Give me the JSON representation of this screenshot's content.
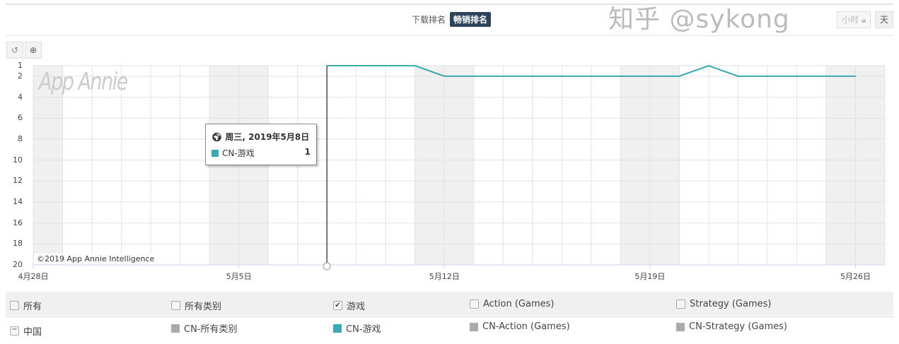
{
  "header": {
    "tabs": [
      {
        "label": "下载排名",
        "active": false
      },
      {
        "label": "畅销排名",
        "active": true
      }
    ],
    "granularity": [
      {
        "label": "小时",
        "locked": true
      },
      {
        "label": "天",
        "active": true
      }
    ]
  },
  "toolbar": {
    "reset_icon": "undo-icon",
    "zoom_icon": "zoom-in-icon"
  },
  "chart_data": {
    "type": "line",
    "watermark": "App Annie",
    "credit": "©2019 App Annie Intelligence",
    "x_ticks": [
      "4月28日",
      "5月5日",
      "5月12日",
      "5月19日",
      "5月26日"
    ],
    "y_ticks": [
      1,
      2,
      4,
      6,
      8,
      10,
      12,
      14,
      16,
      18,
      20
    ],
    "ylim": [
      1,
      20
    ],
    "y_reversed": true,
    "xlim": [
      "2019-04-28",
      "2019-05-27"
    ],
    "weekend_shading": true,
    "grid": true,
    "series": [
      {
        "name": "CN-游戏",
        "color": "#3aa9b4",
        "x": [
          "2019-05-08",
          "2019-05-09",
          "2019-05-10",
          "2019-05-11",
          "2019-05-12",
          "2019-05-13",
          "2019-05-14",
          "2019-05-15",
          "2019-05-16",
          "2019-05-17",
          "2019-05-18",
          "2019-05-19",
          "2019-05-20",
          "2019-05-21",
          "2019-05-22",
          "2019-05-23",
          "2019-05-24",
          "2019-05-25",
          "2019-05-26"
        ],
        "values": [
          1,
          1,
          1,
          1,
          2,
          2,
          2,
          2,
          2,
          2,
          2,
          2,
          2,
          1,
          2,
          2,
          2,
          2,
          2
        ]
      }
    ],
    "tooltip": {
      "date": "周三, 2019年5月8日",
      "series": "CN-游戏",
      "value": "1"
    }
  },
  "legend": {
    "row1": [
      {
        "label": "所有",
        "checked": false
      },
      {
        "label": "所有类别",
        "checked": false
      },
      {
        "label": "游戏",
        "checked": true
      },
      {
        "label": "Action (Games)",
        "checked": false
      },
      {
        "label": "Strategy (Games)",
        "checked": false
      }
    ],
    "country": "中国",
    "row2": [
      {
        "label": "CN-所有类别",
        "color": "#aaaaaa"
      },
      {
        "label": "CN-游戏",
        "color": "#3aa9b4"
      },
      {
        "label": "CN-Action (Games)",
        "color": "#aaaaaa"
      },
      {
        "label": "CN-Strategy (Games)",
        "color": "#aaaaaa"
      }
    ]
  },
  "watermark": "知乎 @sykong"
}
